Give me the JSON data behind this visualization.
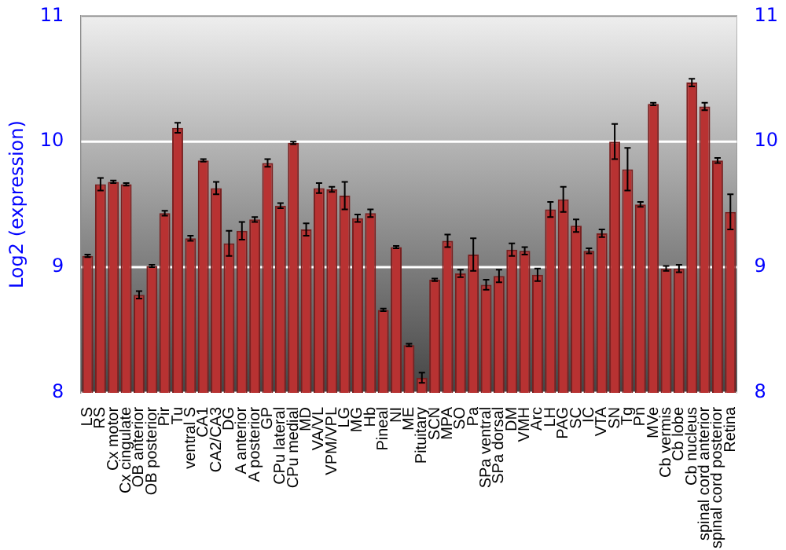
{
  "chart_data": {
    "type": "bar",
    "ylabel": "Log2 (expression)",
    "categories": [
      "LS",
      "RS",
      "Cx motor",
      "Cx cingulate",
      "OB anterior",
      "OB posterior",
      "Pir",
      "Tu",
      "ventral S",
      "CA1",
      "CA2/CA3",
      "DG",
      "A anterior",
      "A posterior",
      "GP",
      "CPu lateral",
      "CPu medial",
      "MD",
      "VA/VL",
      "VPM/VPL",
      "LG",
      "MG",
      "Hb",
      "Pineal",
      "NI",
      "ME",
      "Pituitary",
      "SCN",
      "MPA",
      "SO",
      "Pa",
      "SPa ventral",
      "SPa dorsal",
      "DM",
      "VMH",
      "Arc",
      "LH",
      "PAG",
      "SC",
      "IC",
      "VTA",
      "SN",
      "Tg",
      "Pn",
      "MVe",
      "Cb vermis",
      "Cb lobe",
      "Cb nucleus",
      "spinal cord anterior",
      "spinal cord posterior",
      "Retina"
    ],
    "values": [
      9.09,
      9.66,
      9.68,
      9.66,
      8.78,
      9.01,
      9.43,
      10.11,
      9.23,
      9.85,
      9.63,
      9.19,
      9.29,
      9.38,
      9.83,
      9.49,
      9.99,
      9.3,
      9.63,
      9.62,
      9.57,
      9.39,
      9.43,
      8.66,
      9.16,
      8.38,
      8.12,
      8.9,
      9.21,
      8.95,
      9.1,
      8.86,
      8.93,
      9.14,
      9.13,
      8.94,
      9.46,
      9.54,
      9.33,
      9.13,
      9.27,
      10.0,
      9.78,
      9.5,
      10.3,
      8.99,
      8.99,
      10.47,
      10.28,
      9.85,
      9.44
    ],
    "errors": [
      0.01,
      0.05,
      0.01,
      0.01,
      0.03,
      0.01,
      0.02,
      0.04,
      0.02,
      0.01,
      0.05,
      0.1,
      0.07,
      0.02,
      0.03,
      0.02,
      0.01,
      0.05,
      0.04,
      0.02,
      0.11,
      0.03,
      0.03,
      0.01,
      0.01,
      0.01,
      0.04,
      0.01,
      0.05,
      0.03,
      0.13,
      0.04,
      0.05,
      0.05,
      0.03,
      0.05,
      0.06,
      0.1,
      0.05,
      0.02,
      0.03,
      0.14,
      0.17,
      0.02,
      0.01,
      0.02,
      0.03,
      0.03,
      0.03,
      0.02,
      0.14
    ],
    "color": "#b83232",
    "ylim": [
      8,
      11
    ],
    "yticks": [
      8,
      9,
      10,
      11
    ],
    "y2lim": [
      8,
      11
    ],
    "y2ticks": [
      8,
      9,
      10,
      11
    ],
    "grid": "y"
  }
}
